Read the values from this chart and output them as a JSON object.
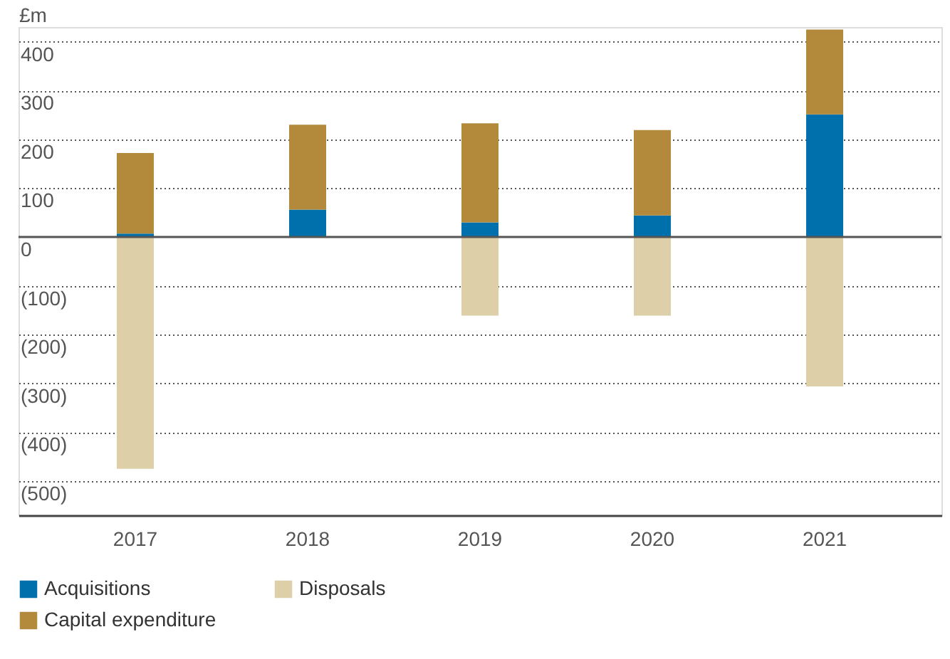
{
  "chart_data": {
    "type": "bar",
    "stacked": true,
    "ylabel": "£m",
    "categories": [
      "2017",
      "2018",
      "2019",
      "2020",
      "2021"
    ],
    "series": [
      {
        "name": "Acquisitions",
        "color": "#0070ad",
        "values": [
          7,
          56,
          30,
          44,
          251
        ]
      },
      {
        "name": "Capital expenditure",
        "color": "#b38a3c",
        "values": [
          165,
          174,
          203,
          175,
          174
        ]
      },
      {
        "name": "Disposals",
        "color": "#ddcfa8",
        "values": [
          -475,
          0,
          -161,
          -161,
          -306
        ]
      }
    ],
    "ylim": [
      -570,
      430
    ],
    "yticks": [
      {
        "value": -500,
        "label": "(500)"
      },
      {
        "value": -400,
        "label": "(400)"
      },
      {
        "value": -300,
        "label": "(300)"
      },
      {
        "value": -200,
        "label": "(200)"
      },
      {
        "value": -100,
        "label": "(100)"
      },
      0,
      100,
      200,
      300,
      400
    ],
    "ref_lines": [
      {
        "axis": "y",
        "value": 0,
        "color": "#555555",
        "line_style": "solid"
      }
    ],
    "grid": "y",
    "legend": "bottom"
  }
}
